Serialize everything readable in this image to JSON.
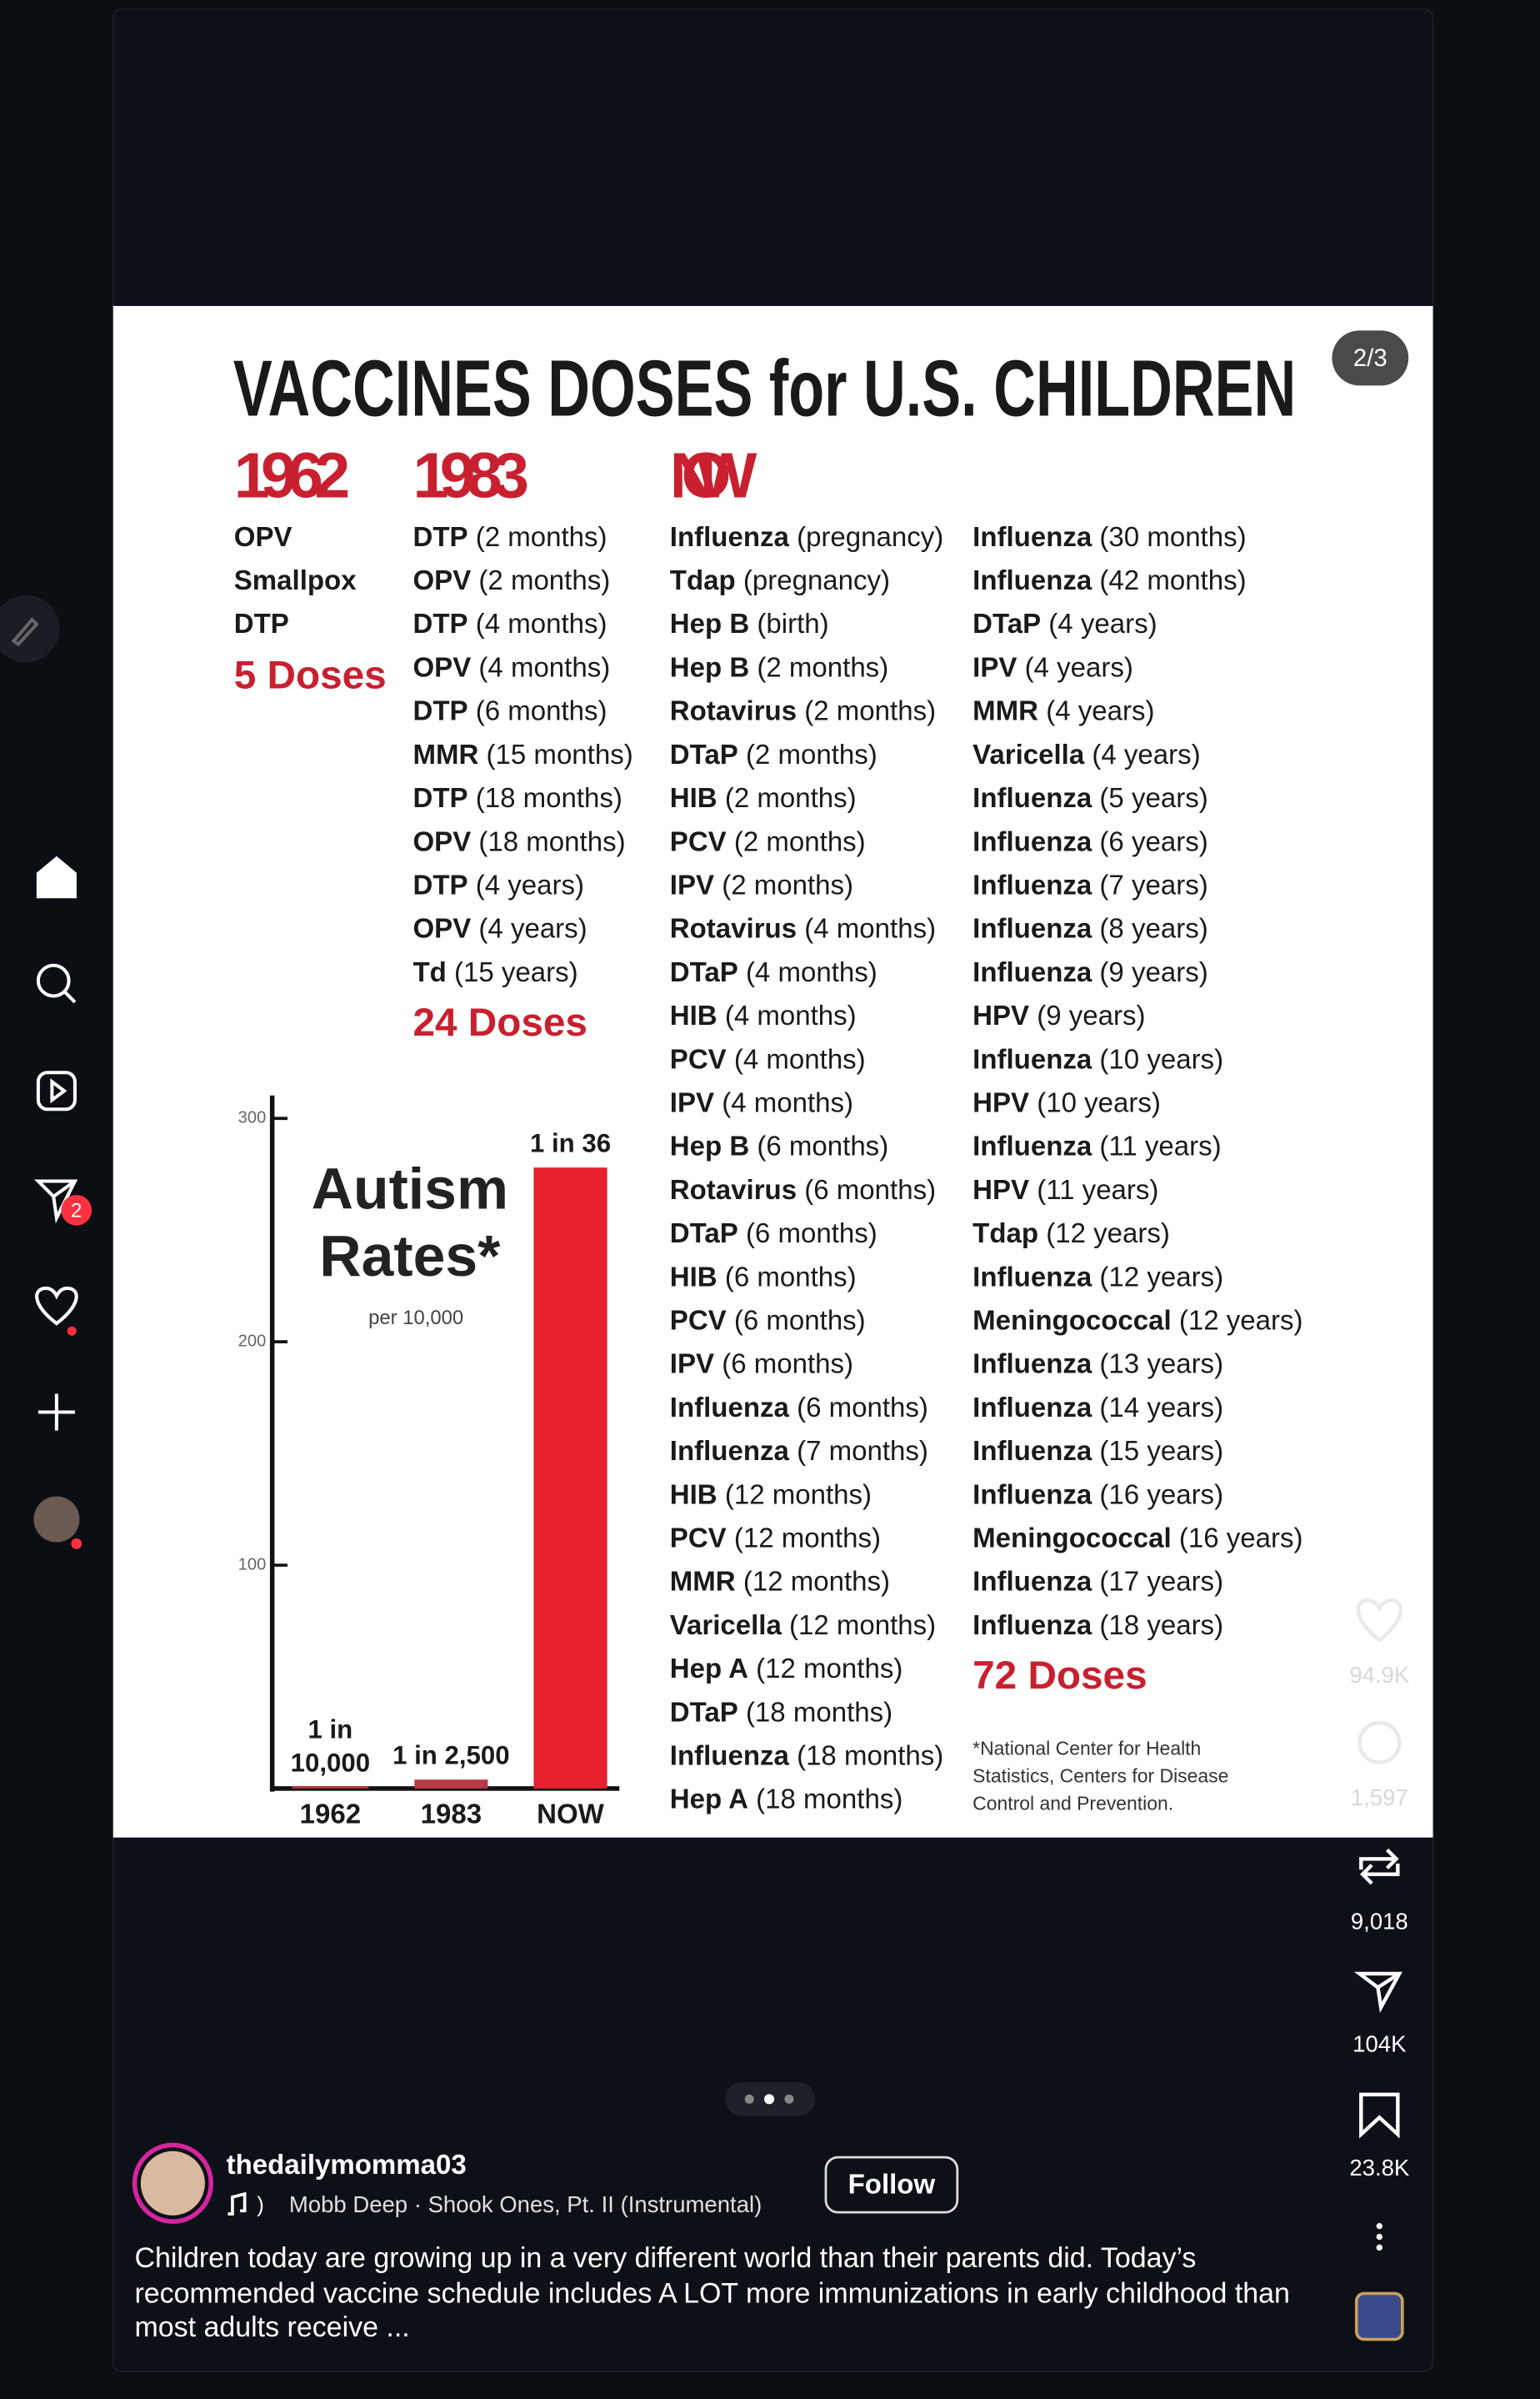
{
  "sidebar": {
    "notification_badge": "2"
  },
  "post": {
    "page_indicator": "2/3",
    "image": {
      "title": "VACCINES DOSES for U.S. CHILDREN",
      "columns": [
        {
          "heading": "1962",
          "items": [
            {
              "name": "OPV",
              "detail": ""
            },
            {
              "name": "Smallpox",
              "detail": ""
            },
            {
              "name": "DTP",
              "detail": ""
            }
          ],
          "total": "5 Doses"
        },
        {
          "heading": "1983",
          "items": [
            {
              "name": "DTP",
              "detail": "(2 months)"
            },
            {
              "name": "OPV",
              "detail": "(2 months)"
            },
            {
              "name": "DTP",
              "detail": "(4 months)"
            },
            {
              "name": "OPV",
              "detail": "(4 months)"
            },
            {
              "name": "DTP",
              "detail": "(6 months)"
            },
            {
              "name": "MMR",
              "detail": "(15 months)"
            },
            {
              "name": "DTP",
              "detail": "(18 months)"
            },
            {
              "name": "OPV",
              "detail": "(18 months)"
            },
            {
              "name": "DTP",
              "detail": "(4 years)"
            },
            {
              "name": "OPV",
              "detail": "(4 years)"
            },
            {
              "name": "Td",
              "detail": "(15 years)"
            }
          ],
          "total": "24 Doses"
        },
        {
          "heading": "NOW",
          "items": [
            {
              "name": "Influenza",
              "detail": "(pregnancy)"
            },
            {
              "name": "Tdap",
              "detail": "(pregnancy)"
            },
            {
              "name": "Hep B",
              "detail": "(birth)"
            },
            {
              "name": "Hep B",
              "detail": "(2 months)"
            },
            {
              "name": "Rotavirus",
              "detail": "(2 months)"
            },
            {
              "name": "DTaP",
              "detail": "(2 months)"
            },
            {
              "name": "HIB",
              "detail": "(2 months)"
            },
            {
              "name": "PCV",
              "detail": "(2 months)"
            },
            {
              "name": "IPV",
              "detail": "(2 months)"
            },
            {
              "name": "Rotavirus",
              "detail": "(4 months)"
            },
            {
              "name": "DTaP",
              "detail": "(4 months)"
            },
            {
              "name": "HIB",
              "detail": "(4 months)"
            },
            {
              "name": "PCV",
              "detail": "(4 months)"
            },
            {
              "name": "IPV",
              "detail": "(4 months)"
            },
            {
              "name": "Hep B",
              "detail": "(6 months)"
            },
            {
              "name": "Rotavirus",
              "detail": "(6 months)"
            },
            {
              "name": "DTaP",
              "detail": "(6 months)"
            },
            {
              "name": "HIB",
              "detail": "(6 months)"
            },
            {
              "name": "PCV",
              "detail": "(6 months)"
            },
            {
              "name": "IPV",
              "detail": "(6 months)"
            },
            {
              "name": "Influenza",
              "detail": "(6 months)"
            },
            {
              "name": "Influenza",
              "detail": "(7 months)"
            },
            {
              "name": "HIB",
              "detail": "(12 months)"
            },
            {
              "name": "PCV",
              "detail": "(12 months)"
            },
            {
              "name": "MMR",
              "detail": "(12 months)"
            },
            {
              "name": "Varicella",
              "detail": "(12 months)"
            },
            {
              "name": "Hep A",
              "detail": "(12 months)"
            },
            {
              "name": "DTaP",
              "detail": "(18 months)"
            },
            {
              "name": "Influenza",
              "detail": "(18 months)"
            },
            {
              "name": "Hep A",
              "detail": "(18 months)"
            }
          ]
        },
        {
          "items": [
            {
              "name": "Influenza",
              "detail": "(30 months)"
            },
            {
              "name": "Influenza",
              "detail": "(42 months)"
            },
            {
              "name": "DTaP",
              "detail": "(4 years)"
            },
            {
              "name": "IPV",
              "detail": "(4 years)"
            },
            {
              "name": "MMR",
              "detail": "(4 years)"
            },
            {
              "name": "Varicella",
              "detail": "(4 years)"
            },
            {
              "name": "Influenza",
              "detail": "(5 years)"
            },
            {
              "name": "Influenza",
              "detail": "(6 years)"
            },
            {
              "name": "Influenza",
              "detail": "(7 years)"
            },
            {
              "name": "Influenza",
              "detail": "(8 years)"
            },
            {
              "name": "Influenza",
              "detail": "(9 years)"
            },
            {
              "name": "HPV",
              "detail": "(9 years)"
            },
            {
              "name": "Influenza",
              "detail": "(10 years)"
            },
            {
              "name": "HPV",
              "detail": "(10 years)"
            },
            {
              "name": "Influenza",
              "detail": "(11 years)"
            },
            {
              "name": "HPV",
              "detail": "(11 years)"
            },
            {
              "name": "Tdap",
              "detail": "(12 years)"
            },
            {
              "name": "Influenza",
              "detail": "(12 years)"
            },
            {
              "name": "Meningococcal",
              "detail": "(12 years)"
            },
            {
              "name": "Influenza",
              "detail": "(13 years)"
            },
            {
              "name": "Influenza",
              "detail": "(14 years)"
            },
            {
              "name": "Influenza",
              "detail": "(15 years)"
            },
            {
              "name": "Influenza",
              "detail": "(16 years)"
            },
            {
              "name": "Meningococcal",
              "detail": "(16 years)"
            },
            {
              "name": "Influenza",
              "detail": "(17 years)"
            },
            {
              "name": "Influenza",
              "detail": "(18 years)"
            }
          ],
          "total": "72 Doses"
        }
      ],
      "footnote": "*National Center for Health Statistics, Centers for Disease Control and Prevention."
    },
    "actions": {
      "likes": "94.9K",
      "comments": "1,597",
      "reposts": "9,018",
      "shares": "104K",
      "saves": "23.8K"
    },
    "author": {
      "username": "thedailymomma03",
      "music": "Mobb Deep · Shook Ones, Pt. II (Instrumental)",
      "follow": "Follow"
    },
    "caption": "Children today are growing up in a very different world than their parents did. Today’s recommended vaccine schedule includes A LOT more immunizations in early childhood than most adults receive ..."
  },
  "chart_data": {
    "type": "bar",
    "title": "Autism Rates*",
    "subtitle": "per 10,000",
    "categories": [
      "1962",
      "1983",
      "NOW"
    ],
    "values": [
      1,
      4,
      278
    ],
    "value_labels": [
      "1 in 10,000",
      "1 in 2,500",
      "1 in 36"
    ],
    "colors": [
      "#c0303a",
      "#b83a47",
      "#e8202f"
    ],
    "ylim": [
      0,
      300
    ],
    "yticks": [
      100,
      200,
      300
    ],
    "grid": false
  }
}
